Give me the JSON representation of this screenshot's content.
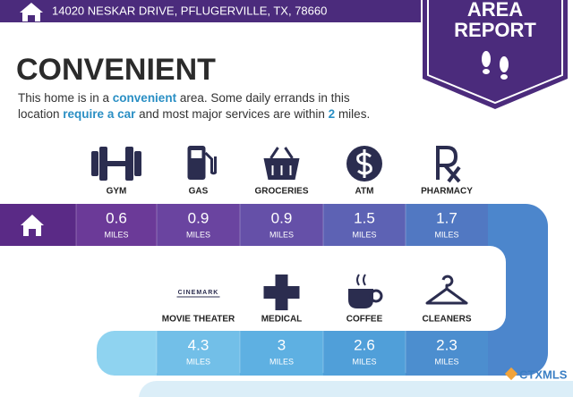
{
  "header": {
    "address": "14020 NESKAR DRIVE, PFLUGERVILLE, TX, 78660"
  },
  "badge": {
    "line1": "AREA",
    "line2": "REPORT"
  },
  "title": "CONVENIENT",
  "description": {
    "parts": [
      "This home is in a ",
      "convenient",
      " area. Some daily errands in this",
      "location ",
      "require a car",
      " and most major services are within ",
      "2",
      " miles."
    ]
  },
  "unit": "MILES",
  "rows": [
    {
      "amenities": [
        {
          "label": "GYM",
          "distance": 0.6
        },
        {
          "label": "GAS",
          "distance": 0.9
        },
        {
          "label": "GROCERIES",
          "distance": 0.9
        },
        {
          "label": "ATM",
          "distance": 1.5
        },
        {
          "label": "PHARMACY",
          "distance": 1.7
        }
      ]
    },
    {
      "amenities": [
        {
          "label": "MOVIE THEATER",
          "distance": 4.3
        },
        {
          "label": "MEDICAL",
          "distance": 3
        },
        {
          "label": "COFFEE",
          "distance": 2.6
        },
        {
          "label": "CLEANERS",
          "distance": 2.3
        }
      ]
    }
  ],
  "logo_text": "CINEMARK",
  "footer": {
    "brand": "CTXMLS"
  }
}
